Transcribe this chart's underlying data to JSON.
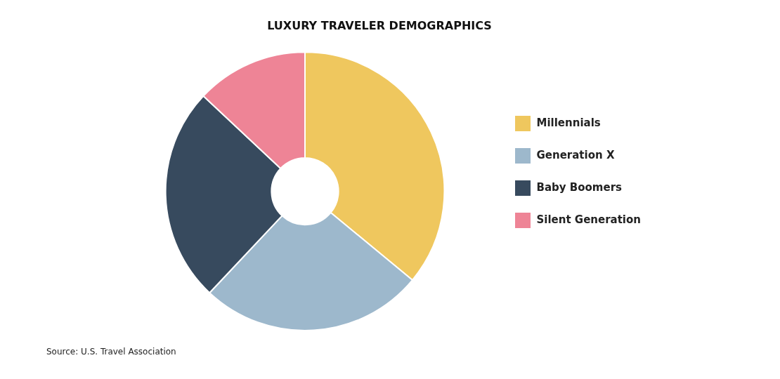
{
  "chart_data": {
    "type": "donut",
    "title": "LUXURY TRAVELER DEMOGRAPHICS",
    "categories": [
      "Millennials",
      "Generation X",
      "Baby Boomers",
      "Silent Generation"
    ],
    "values": [
      36,
      26,
      25,
      13
    ],
    "colors": [
      "#efc75e",
      "#9db8cc",
      "#374a5e",
      "#ee8496"
    ],
    "legend": "right",
    "annotations": [
      "Source: U.S. Travel Association"
    ]
  }
}
